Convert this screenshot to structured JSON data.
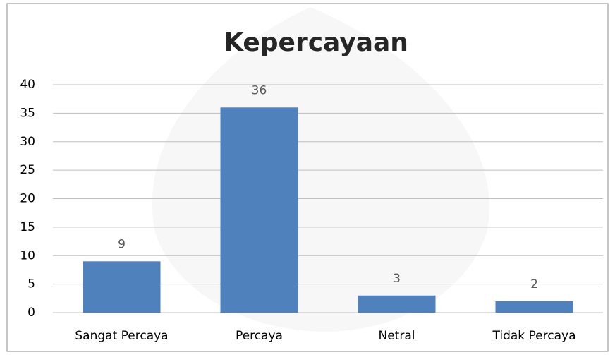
{
  "chart_data": {
    "type": "bar",
    "title": "Kepercayaan",
    "categories": [
      "Sangat Percaya",
      "Percaya",
      "Netral",
      "Tidak Percaya"
    ],
    "values": [
      9,
      36,
      3,
      2
    ],
    "color": "#4f81bd",
    "ylim": [
      0,
      40
    ],
    "yticks": [
      0,
      5,
      10,
      15,
      20,
      25,
      30,
      35,
      40
    ],
    "grid": true
  }
}
